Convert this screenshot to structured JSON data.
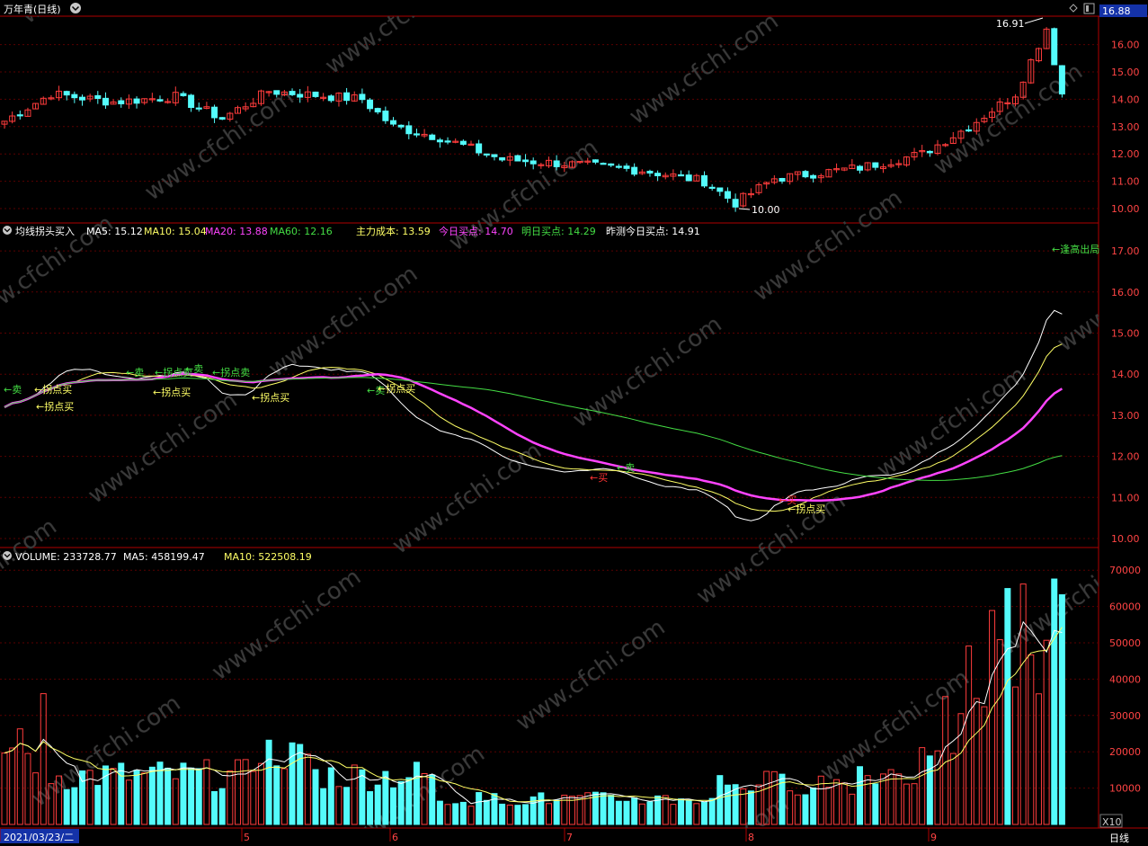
{
  "window": {
    "title": "万年青(日线)",
    "price_box": "16.88",
    "timeframe": "日线",
    "x_scale": "X10"
  },
  "price_panel": {
    "axis_ticks": [
      "16.00",
      "15.00",
      "14.00",
      "13.00",
      "12.00",
      "11.00",
      "10.00"
    ],
    "high_label": "16.91",
    "low_label": "10.00"
  },
  "ind_panel": {
    "name": "均线拐头买入",
    "legend": [
      {
        "label": "MA5: 15.12",
        "color": "#ffffff"
      },
      {
        "label": "MA10: 15.04",
        "color": "#ffff66"
      },
      {
        "label": "MA20: 13.88",
        "color": "#ff44ff"
      },
      {
        "label": "MA60: 12.16",
        "color": "#44dd44"
      },
      {
        "label": "主力成本: 13.59",
        "color": "#ffff66"
      },
      {
        "label": "今日买点: 14.70",
        "color": "#ff44ff"
      },
      {
        "label": "明日买点: 14.29",
        "color": "#44dd44"
      },
      {
        "label": "昨测今日买点: 14.91",
        "color": "#ffffff"
      }
    ],
    "axis_ticks": [
      "17.00",
      "16.00",
      "15.00",
      "14.00",
      "13.00",
      "12.00",
      "11.00",
      "10.00"
    ],
    "annotations": [
      {
        "text": "←卖",
        "color": "#44dd44"
      },
      {
        "text": "←拐点买",
        "color": "#ffff66"
      },
      {
        "text": "←拐点买",
        "color": "#ffff66"
      },
      {
        "text": "←卖",
        "color": "#44dd44"
      },
      {
        "text": "←拐点卖",
        "color": "#44dd44"
      },
      {
        "text": "←卖",
        "color": "#44dd44"
      },
      {
        "text": "←拐点卖",
        "color": "#44dd44"
      },
      {
        "text": "←拐点买",
        "color": "#ffff66"
      },
      {
        "text": "←拐点买",
        "color": "#ffff66"
      },
      {
        "text": "←卖",
        "color": "#44dd44"
      },
      {
        "text": "←拐点买",
        "color": "#ffff66"
      },
      {
        "text": "←买",
        "color": "#ff3333"
      },
      {
        "text": "←卖",
        "color": "#44dd44"
      },
      {
        "text": "←买",
        "color": "#ff3333"
      },
      {
        "text": "←拐点买",
        "color": "#ffff66"
      },
      {
        "text": "←逢高出局",
        "color": "#44dd44"
      }
    ]
  },
  "volume_panel": {
    "legend": [
      {
        "label": "VOLUME: 233728.77",
        "color": "#ffffff"
      },
      {
        "label": "MA5: 458199.47",
        "color": "#ffffff"
      },
      {
        "label": "MA10: 522508.19",
        "color": "#ffff66"
      }
    ],
    "axis_ticks": [
      "70000",
      "60000",
      "50000",
      "40000",
      "30000",
      "20000",
      "10000"
    ]
  },
  "date_axis": {
    "labels": [
      "2021/03/23/二",
      "5",
      "6",
      "7",
      "8",
      "9"
    ]
  },
  "watermark": "www.cfchi.com",
  "colors": {
    "up": "#ff3c3c",
    "down": "#54fcfc",
    "grid": "#6b0000",
    "frame": "#b00000"
  }
}
